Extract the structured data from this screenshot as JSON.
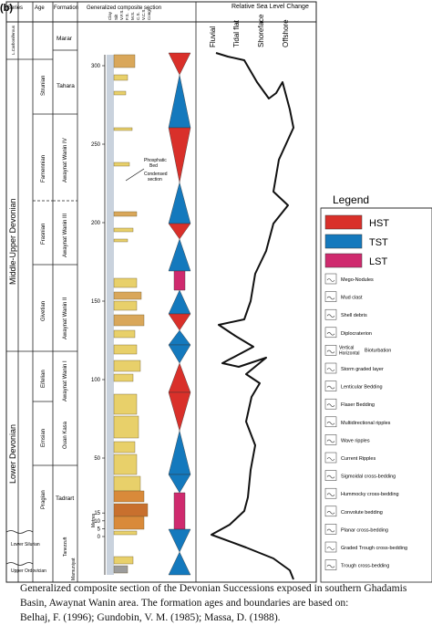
{
  "figure": {
    "panel_label": "(b)",
    "headers": {
      "series": "Series",
      "age": "Age",
      "formation": "Formation",
      "section": "Generalized composite section",
      "sea_level": "Relative Sea Level Change"
    },
    "lithology_columns": [
      "Clay",
      "Silt",
      "V.F.S.",
      "F.S.",
      "M.S.",
      "C.S.",
      "V.C.S.",
      "Congl."
    ],
    "sea_level_columns": [
      "Fluvial",
      "Tidal flat",
      "Shoreface",
      "Offshore"
    ],
    "depth_unit": "Metres",
    "depth_ticks": [
      "300",
      "250",
      "200",
      "150",
      "100",
      "50",
      "15",
      "10",
      "5",
      "0"
    ],
    "series": [
      "L.Carboniferous",
      "Middle-Upper Devonian",
      "Lower Devonian",
      "Lower Silurian",
      "Upper Ordovician"
    ],
    "ages": [
      "Strunian",
      "Famennian",
      "Frasnian",
      "Givetian",
      "Eifelian",
      "Emsian",
      "Pragian"
    ],
    "formations": [
      "Marar",
      "Tahara",
      "Awaynat Wanin IV",
      "Awaynat Wanin III",
      "Awaynat Wanin II",
      "Awaynat Wanin I",
      "Ouan Kasa",
      "Tadrart",
      "Tanezzuft",
      "Mamuniyat"
    ],
    "annotations": [
      "Phosphatic",
      "Bed",
      "Condensed",
      "section"
    ]
  },
  "legend": {
    "title": "Legend",
    "systems_tracts": [
      {
        "label": "HST",
        "color": "#d9302a"
      },
      {
        "label": "TST",
        "color": "#1479bd"
      },
      {
        "label": "LST",
        "color": "#cf2a6e"
      }
    ],
    "items": [
      "Mego-Nodules",
      "Mud clast",
      "Shell debris",
      "Diplocraterion",
      "Vertical",
      "Horizontal",
      "Bioturbation",
      "Storm graded layer",
      "Lenticular Bedding",
      "Flaser Bedding",
      "Multidirectional ripples",
      "Wave ripples",
      "Current Ripples",
      "Sigmoidal cross-bedding",
      "Hummocky cross-bedding",
      "Convolute bedding",
      "Planar cross-bedding",
      "Graded Trough cross-bedding",
      "Trough cross-bedding"
    ]
  },
  "caption": {
    "line1": "Generalized composite section of the Devonian Successions exposed in southern Ghadamis",
    "line2": "Basin, Awaynat Wanin area. The formation ages and boundaries are based on:",
    "line3": "Belhaj, F. (1996); Gundobin, V. M. (1985); Massa, D. (1988)."
  }
}
